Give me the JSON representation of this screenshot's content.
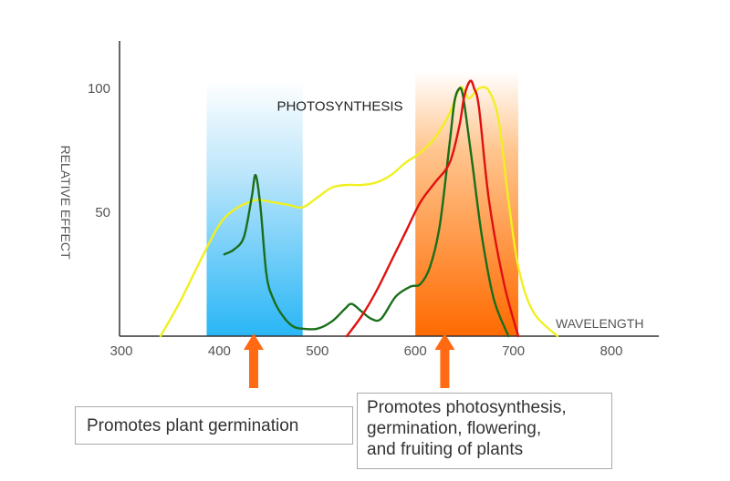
{
  "chart_data": {
    "type": "line",
    "title": "",
    "xlabel": "WAVELENGTH",
    "ylabel": "RELATIVE EFFECT",
    "xlim": [
      300,
      800
    ],
    "ylim": [
      0,
      100
    ],
    "x_ticks": [
      300,
      400,
      500,
      600,
      700,
      800
    ],
    "x_tick_labels": [
      "300",
      "400",
      "500",
      "600",
      "700",
      "800"
    ],
    "y_ticks": [
      100,
      50
    ],
    "y_tick_labels": [
      "100",
      "50"
    ],
    "grid": false,
    "legend": null,
    "annotations": [
      {
        "text": "PHOTOSYNTHESIS",
        "x": 523,
        "y": 91
      }
    ],
    "bands": [
      {
        "name": "blue",
        "x": [
          387,
          485
        ],
        "color": "#29b6f6"
      },
      {
        "name": "red-orange",
        "x": [
          600,
          705
        ],
        "color": "#ff6a00"
      }
    ],
    "arrows": [
      {
        "x": 435,
        "color": "#ff6a13"
      },
      {
        "x": 630,
        "color": "#ff6a13"
      }
    ],
    "series": [
      {
        "color": "#f0f020",
        "x": [
          340,
          360,
          380,
          400,
          415,
          430,
          440,
          455,
          470,
          485,
          500,
          515,
          530,
          545,
          560,
          575,
          590,
          605,
          620,
          635,
          645,
          650,
          655,
          665,
          675,
          685,
          695,
          705,
          720,
          745
        ],
        "y": [
          0,
          14,
          30,
          45,
          51,
          54,
          55,
          54,
          53,
          52,
          56,
          60,
          61,
          61,
          62,
          65,
          70,
          74,
          80,
          90,
          100,
          99,
          96,
          100,
          99,
          87,
          55,
          28,
          10,
          0
        ]
      },
      {
        "color": "#1a6e1a",
        "x": [
          405,
          415,
          425,
          433,
          437,
          442,
          448,
          455,
          465,
          475,
          485,
          500,
          515,
          528,
          535,
          545,
          555,
          565,
          580,
          595,
          605,
          615,
          625,
          635,
          640,
          645,
          648,
          652,
          658,
          668,
          680,
          695
        ],
        "y": [
          33,
          35,
          40,
          56,
          65,
          52,
          25,
          15,
          8,
          4,
          3,
          3,
          6,
          11,
          13,
          10,
          7,
          7,
          16,
          20,
          21,
          28,
          45,
          78,
          95,
          100,
          98,
          88,
          70,
          40,
          15,
          0
        ]
      },
      {
        "color": "#e01010",
        "x": [
          530,
          545,
          560,
          575,
          590,
          605,
          620,
          635,
          645,
          650,
          656,
          660,
          665,
          675,
          690,
          705
        ],
        "y": [
          0,
          8,
          18,
          30,
          42,
          54,
          62,
          70,
          85,
          97,
          103,
          100,
          92,
          55,
          22,
          0
        ]
      }
    ]
  },
  "callouts": [
    {
      "lines": [
        "Promotes plant germination"
      ]
    },
    {
      "lines": [
        "Promotes photosynthesis,",
        "germination, flowering,",
        "and fruiting of plants"
      ]
    }
  ]
}
